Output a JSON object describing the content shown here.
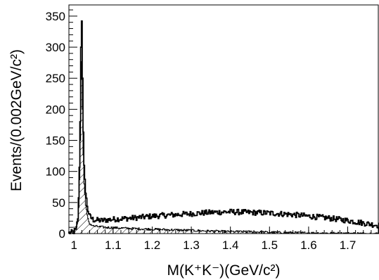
{
  "chart_data": {
    "type": "histogram",
    "xlabel": "M(K⁺K⁻)(GeV/c²)",
    "ylabel": "Events/(0.002GeV/c²)",
    "xlim": [
      0.987,
      1.78
    ],
    "ylim": [
      0,
      368
    ],
    "bin_width": 0.002,
    "x_ticks": [
      1.0,
      1.1,
      1.2,
      1.3,
      1.4,
      1.5,
      1.6,
      1.7
    ],
    "x_tick_labels": [
      "1",
      "1.1",
      "1.2",
      "1.3",
      "1.4",
      "1.5",
      "1.6",
      "1.7"
    ],
    "y_ticks": [
      0,
      50,
      100,
      150,
      200,
      250,
      300,
      350
    ],
    "y_tick_labels": [
      "0",
      "50",
      "100",
      "150",
      "200",
      "250",
      "300",
      "350"
    ],
    "grid": false,
    "series": [
      {
        "style": "solid-line",
        "points": [
          [
            0.99,
            1
          ],
          [
            1.0,
            3
          ],
          [
            1.006,
            8
          ],
          [
            1.01,
            25
          ],
          [
            1.013,
            70
          ],
          [
            1.016,
            180
          ],
          [
            1.018,
            300
          ],
          [
            1.0195,
            358
          ],
          [
            1.021,
            310
          ],
          [
            1.023,
            190
          ],
          [
            1.026,
            110
          ],
          [
            1.03,
            65
          ],
          [
            1.035,
            40
          ],
          [
            1.04,
            28
          ],
          [
            1.05,
            22
          ],
          [
            1.07,
            21
          ],
          [
            1.1,
            23
          ],
          [
            1.15,
            25
          ],
          [
            1.2,
            28
          ],
          [
            1.25,
            30
          ],
          [
            1.3,
            32
          ],
          [
            1.35,
            34
          ],
          [
            1.4,
            35
          ],
          [
            1.45,
            34
          ],
          [
            1.5,
            33
          ],
          [
            1.55,
            31
          ],
          [
            1.6,
            28
          ],
          [
            1.65,
            25
          ],
          [
            1.7,
            21
          ],
          [
            1.75,
            16
          ],
          [
            1.78,
            13
          ]
        ]
      },
      {
        "style": "hatched-fill",
        "points": [
          [
            0.99,
            1
          ],
          [
            1.0,
            3
          ],
          [
            1.006,
            7
          ],
          [
            1.01,
            20
          ],
          [
            1.013,
            55
          ],
          [
            1.016,
            150
          ],
          [
            1.018,
            248
          ],
          [
            1.0195,
            290
          ],
          [
            1.021,
            250
          ],
          [
            1.023,
            150
          ],
          [
            1.026,
            80
          ],
          [
            1.03,
            45
          ],
          [
            1.035,
            25
          ],
          [
            1.04,
            16
          ],
          [
            1.05,
            12
          ],
          [
            1.08,
            10
          ],
          [
            1.15,
            8
          ],
          [
            1.2,
            7
          ],
          [
            1.25,
            6
          ],
          [
            1.3,
            5
          ],
          [
            1.35,
            4
          ],
          [
            1.4,
            3
          ],
          [
            1.45,
            3
          ],
          [
            1.5,
            2
          ],
          [
            1.6,
            1
          ],
          [
            1.78,
            0
          ]
        ]
      }
    ]
  }
}
